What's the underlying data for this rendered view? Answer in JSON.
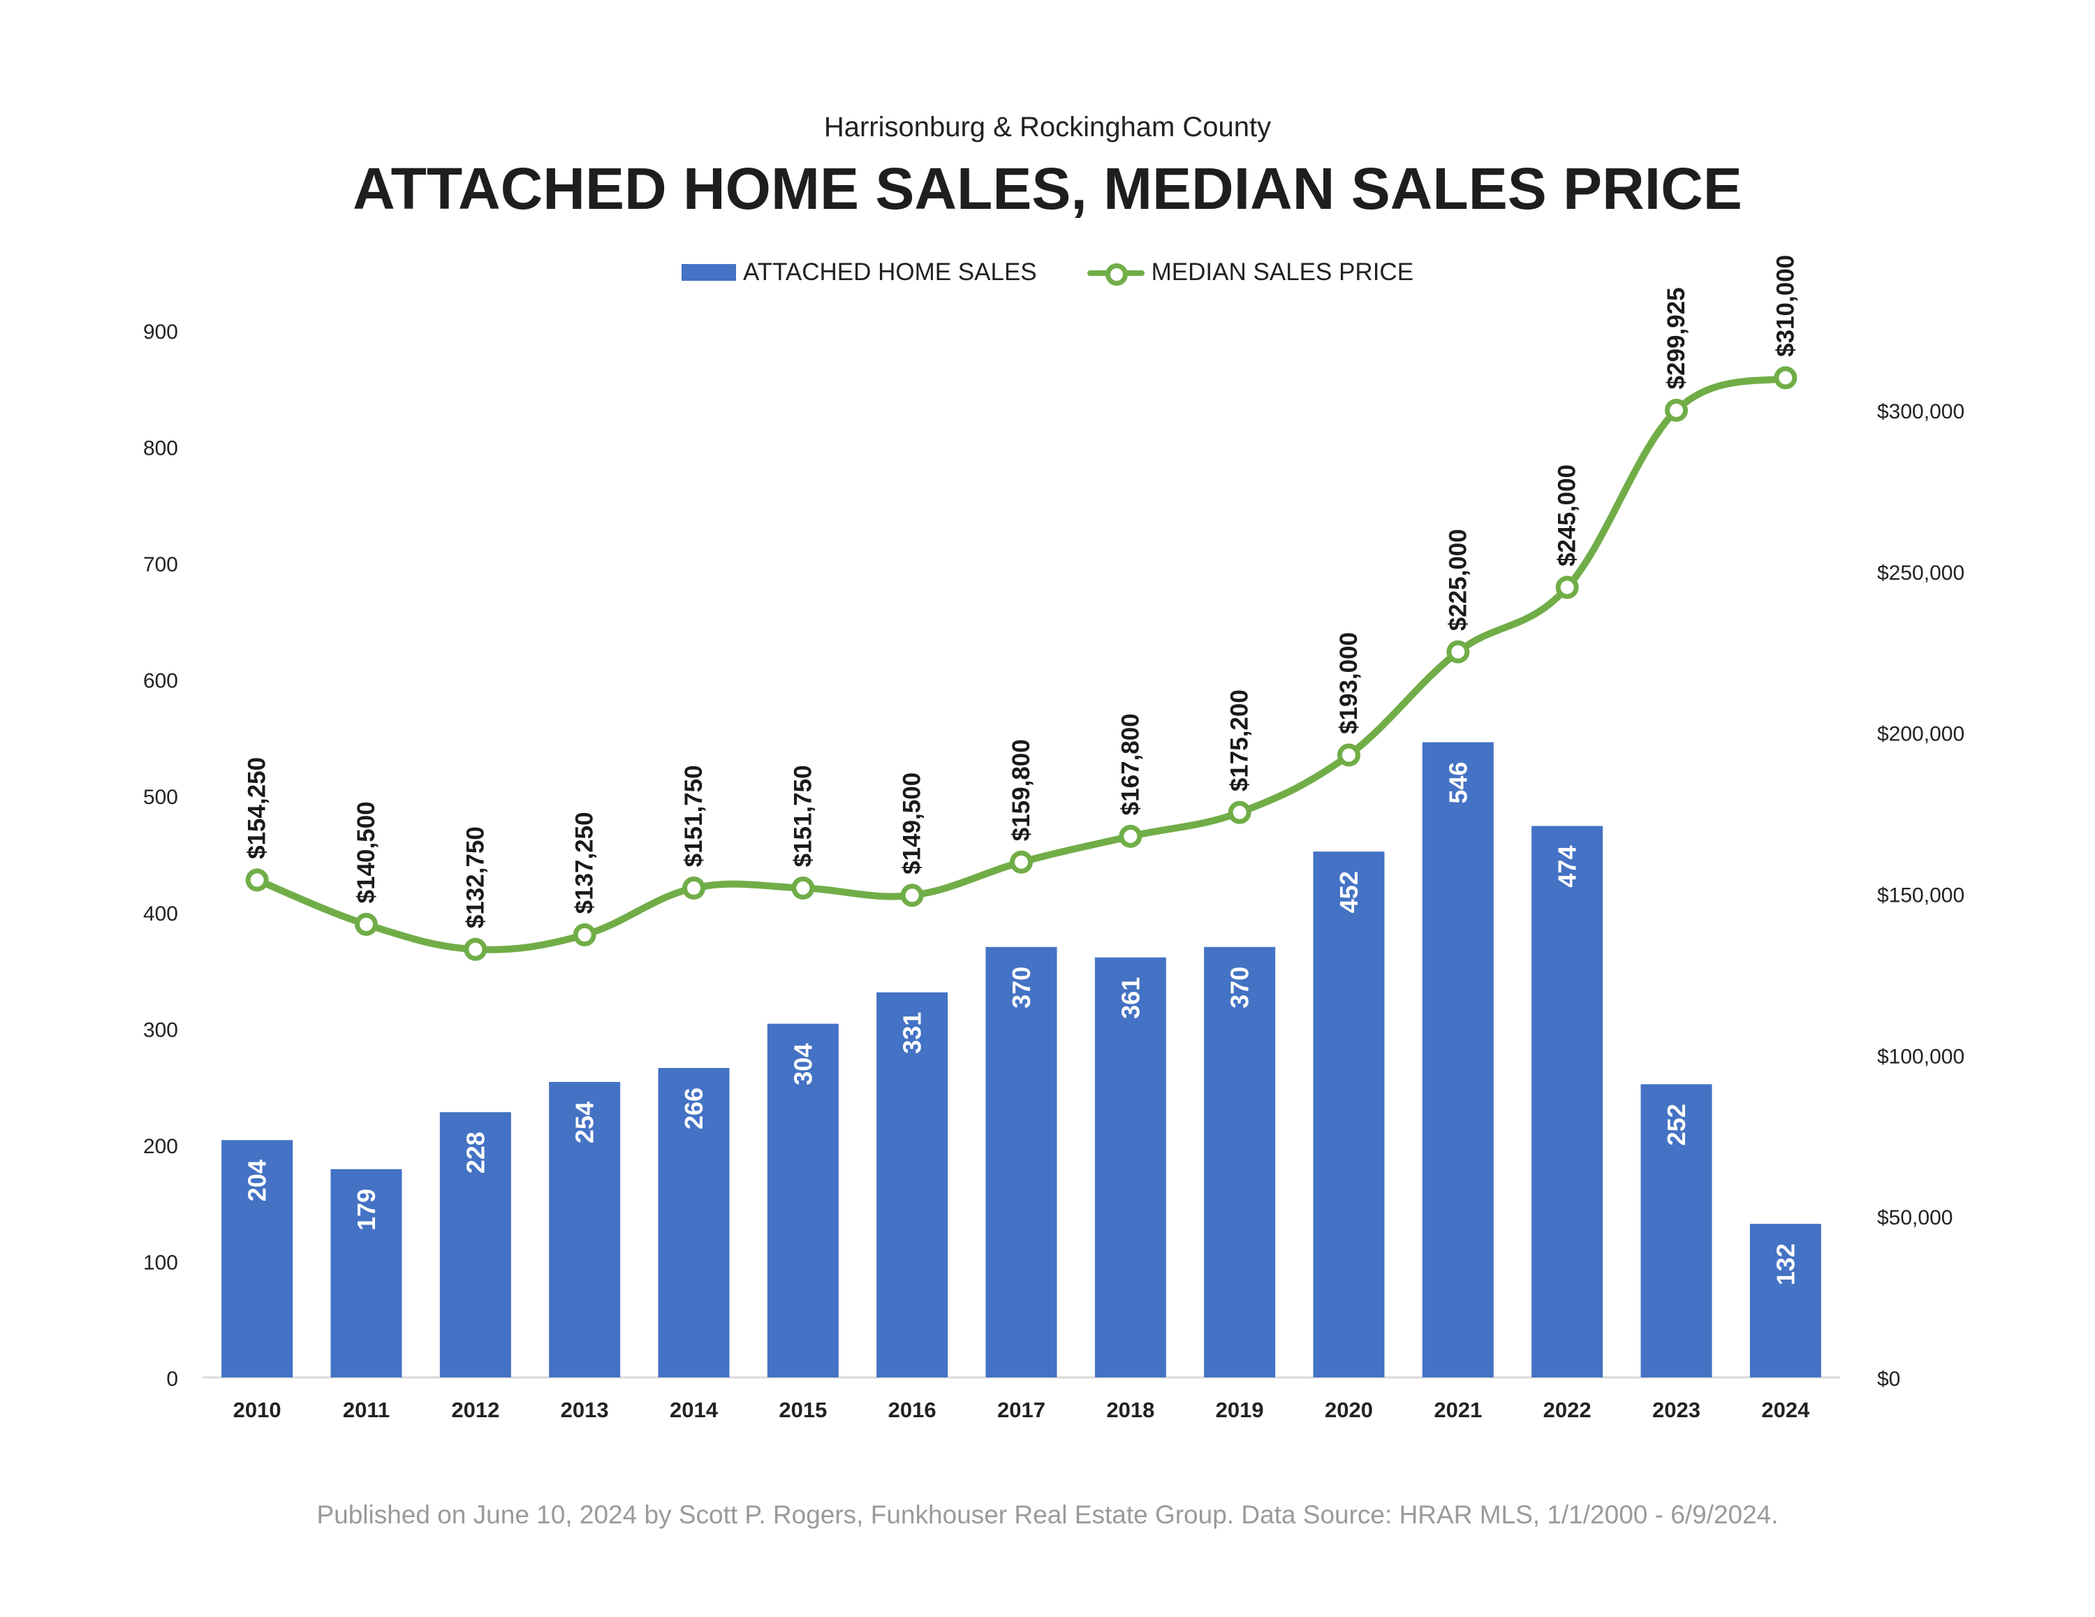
{
  "header": {
    "subtitle": "Harrisonburg & Rockingham County",
    "title": "ATTACHED HOME SALES, MEDIAN SALES PRICE"
  },
  "legend": {
    "bar_label": "ATTACHED HOME SALES",
    "line_label": "MEDIAN SALES PRICE"
  },
  "footer": {
    "text": "Published on June 10, 2024 by Scott P. Rogers, Funkhouser Real Estate Group. Data Source: HRAR MLS, 1/1/2000 - 6/9/2024."
  },
  "colors": {
    "bar": "#4472c4",
    "line": "#70ad47",
    "axis_text": "#222222",
    "bar_label_text": "#ffffff"
  },
  "chart_data": {
    "type": "bar+line",
    "categories": [
      "2010",
      "2011",
      "2012",
      "2013",
      "2014",
      "2015",
      "2016",
      "2017",
      "2018",
      "2019",
      "2020",
      "2021",
      "2022",
      "2023",
      "2024"
    ],
    "series": [
      {
        "name": "ATTACHED HOME SALES",
        "type": "bar",
        "axis": "left",
        "values": [
          204,
          179,
          228,
          254,
          266,
          304,
          331,
          370,
          361,
          370,
          452,
          546,
          474,
          252,
          132
        ],
        "labels": [
          "204",
          "179",
          "228",
          "254",
          "266",
          "304",
          "331",
          "370",
          "361",
          "370",
          "452",
          "546",
          "474",
          "252",
          "132"
        ]
      },
      {
        "name": "MEDIAN SALES PRICE",
        "type": "line",
        "axis": "right",
        "values": [
          154250,
          140500,
          132750,
          137250,
          151750,
          151750,
          149500,
          159800,
          167800,
          175200,
          193000,
          225000,
          245000,
          299925,
          310000
        ],
        "labels": [
          "$154,250",
          "$140,500",
          "$132,750",
          "$137,250",
          "$151,750",
          "$151,750",
          "$149,500",
          "$159,800",
          "$167,800",
          "$175,200",
          "$193,000",
          "$225,000",
          "$245,000",
          "$299,925",
          "$310,000"
        ]
      }
    ],
    "y_left": {
      "range": [
        0,
        900
      ],
      "ticks": [
        0,
        100,
        200,
        300,
        400,
        500,
        600,
        700,
        800,
        900
      ],
      "tick_labels": [
        "0",
        "100",
        "200",
        "300",
        "400",
        "500",
        "600",
        "700",
        "800",
        "900"
      ]
    },
    "y_right": {
      "range": [
        0,
        300000
      ],
      "ticks": [
        0,
        50000,
        100000,
        150000,
        200000,
        250000,
        300000
      ],
      "tick_labels": [
        "$0",
        "$50,000",
        "$100,000",
        "$150,000",
        "$200,000",
        "$250,000",
        "$300,000"
      ]
    },
    "grid": false,
    "legend_position": "top-center"
  }
}
